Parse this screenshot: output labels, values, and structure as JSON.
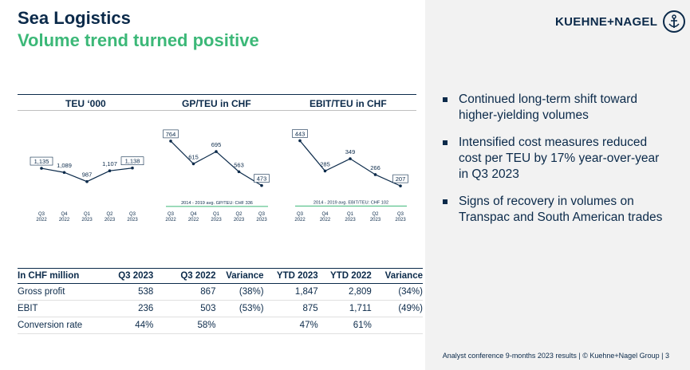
{
  "header": {
    "title": "Sea Logistics",
    "subtitle": "Volume trend turned positive",
    "logo_text": "KUEHNE+NAGEL"
  },
  "colors": {
    "navy": "#0b2a4a",
    "green": "#3cb878",
    "panel": "#f2f2f2"
  },
  "chart_data": [
    {
      "type": "line",
      "title": "TEU ‘000",
      "categories": [
        [
          "Q3",
          "2022"
        ],
        [
          "Q4",
          "2022"
        ],
        [
          "Q1",
          "2023"
        ],
        [
          "Q2",
          "2023"
        ],
        [
          "Q3",
          "2023"
        ]
      ],
      "values": [
        1135,
        1089,
        987,
        1107,
        1138
      ],
      "labels": [
        "1,135",
        "1,089",
        "987",
        "1,107",
        "1,138"
      ],
      "boxed": [
        0,
        4
      ],
      "ylim": [
        700,
        1500
      ],
      "reference": null
    },
    {
      "type": "line",
      "title": "GP/TEU in CHF",
      "categories": [
        [
          "Q3",
          "2022"
        ],
        [
          "Q4",
          "2022"
        ],
        [
          "Q1",
          "2023"
        ],
        [
          "Q2",
          "2023"
        ],
        [
          "Q3",
          "2023"
        ]
      ],
      "values": [
        764,
        615,
        695,
        563,
        473
      ],
      "labels": [
        "764",
        "615",
        "695",
        "563",
        "473"
      ],
      "boxed": [
        0,
        4
      ],
      "ylim": [
        330,
        800
      ],
      "reference": {
        "value": 336,
        "label": "2014 - 2019 avg. GP/TEU: CHF 336"
      }
    },
    {
      "type": "line",
      "title": "EBIT/TEU in CHF",
      "categories": [
        [
          "Q3",
          "2022"
        ],
        [
          "Q4",
          "2022"
        ],
        [
          "Q1",
          "2023"
        ],
        [
          "Q2",
          "2023"
        ],
        [
          "Q3",
          "2023"
        ]
      ],
      "values": [
        443,
        285,
        349,
        266,
        207
      ],
      "labels": [
        "443",
        "285",
        "349",
        "266",
        "207"
      ],
      "boxed": [
        0,
        4
      ],
      "ylim": [
        95,
        470
      ],
      "reference": {
        "value": 102,
        "label": "2014 - 2019 avg. EBIT/TEU: CHF 102"
      }
    }
  ],
  "bullets": [
    "Continued long-term shift toward higher-yielding volumes",
    "Intensified cost measures reduced cost per TEU by 17% year-over-year in Q3 2023",
    "Signs of recovery in volumes on Transpac and South American trades"
  ],
  "table": {
    "headers": [
      "In CHF million",
      "Q3 2023",
      "Q3 2022",
      "Variance",
      "YTD 2023",
      "YTD 2022",
      "Variance"
    ],
    "rows": [
      [
        "Gross profit",
        "538",
        "867",
        "(38%)",
        "1,847",
        "2,809",
        "(34%)"
      ],
      [
        "EBIT",
        "236",
        "503",
        "(53%)",
        "875",
        "1,711",
        "(49%)"
      ],
      [
        "Conversion rate",
        "44%",
        "58%",
        "",
        "47%",
        "61%",
        ""
      ]
    ]
  },
  "footer": "Analyst conference 9-months 2023 results | © Kuehne+Nagel Group | 3"
}
